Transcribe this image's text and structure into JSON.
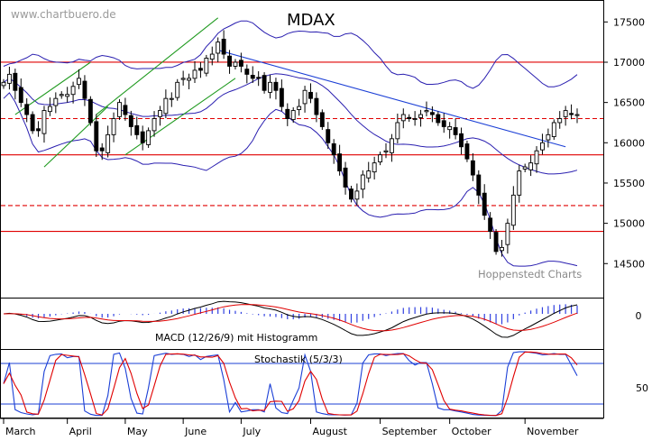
{
  "site": "www.chartbuero.de",
  "colors": {
    "candle": "#000000",
    "bollinger": "#2a1fb0",
    "trend_red": "#e00000",
    "trend_blue": "#1b3fd6",
    "channel_green": "#1f9a1f",
    "macd_line": "#000000",
    "signal_line": "#e00000",
    "histogram": "#3040e0",
    "stoch_k": "#1b3fd6",
    "stoch_d": "#e00000"
  },
  "chart_data": [
    {
      "type": "candlestick",
      "title": "MDAX",
      "source_note": "Hoppenstedt Charts",
      "x_labels": [
        "March",
        "April",
        "May",
        "June",
        "July",
        "August",
        "September",
        "October",
        "November"
      ],
      "y_ticks": [
        "17500",
        "17000",
        "16500",
        "16000",
        "15500",
        "15000",
        "14500"
      ],
      "ylim": [
        14100,
        17750
      ],
      "close": [
        16750,
        16850,
        16650,
        16500,
        16350,
        16150,
        16150,
        16400,
        16450,
        16550,
        16600,
        16600,
        16700,
        16800,
        16550,
        16250,
        15900,
        15900,
        16100,
        16300,
        16500,
        16350,
        16200,
        16100,
        16000,
        16150,
        16300,
        16400,
        16550,
        16550,
        16750,
        16800,
        16800,
        16900,
        16900,
        17050,
        17100,
        17250,
        17100,
        16950,
        17000,
        16950,
        16850,
        16800,
        16800,
        16650,
        16750,
        16650,
        16450,
        16300,
        16400,
        16450,
        16650,
        16550,
        16350,
        16200,
        16000,
        15850,
        15650,
        15450,
        15300,
        15400,
        15600,
        15650,
        15750,
        15850,
        15900,
        16050,
        16250,
        16350,
        16300,
        16300,
        16350,
        16400,
        16350,
        16250,
        16200,
        16200,
        16100,
        15950,
        15800,
        15600,
        15350,
        15100,
        14900,
        14650,
        14700,
        15000,
        15350,
        15650,
        15700,
        15750,
        15900,
        16000,
        16100,
        16250,
        16300,
        16400,
        16350,
        16350
      ],
      "horizontal_lines": [
        {
          "value": 17000,
          "style": "solid",
          "color": "#e00000"
        },
        {
          "value": 15850,
          "style": "solid",
          "color": "#e00000"
        },
        {
          "value": 14900,
          "style": "solid",
          "color": "#e00000"
        },
        {
          "value": 16300,
          "style": "dashed",
          "color": "#e00000"
        },
        {
          "value": 15220,
          "style": "dashed",
          "color": "#e00000"
        }
      ],
      "bollinger_period": 20,
      "bollinger_k": 2
    },
    {
      "type": "line",
      "title": "MACD (12/26/9) mit Histogramm",
      "y_ticks": [
        "0"
      ],
      "series": []
    },
    {
      "type": "line",
      "title": "Stochastik (5/3/3)",
      "y_ticks": [
        "50"
      ],
      "ylim": [
        0,
        100
      ],
      "reference_lines": [
        80,
        20
      ],
      "series": []
    }
  ]
}
